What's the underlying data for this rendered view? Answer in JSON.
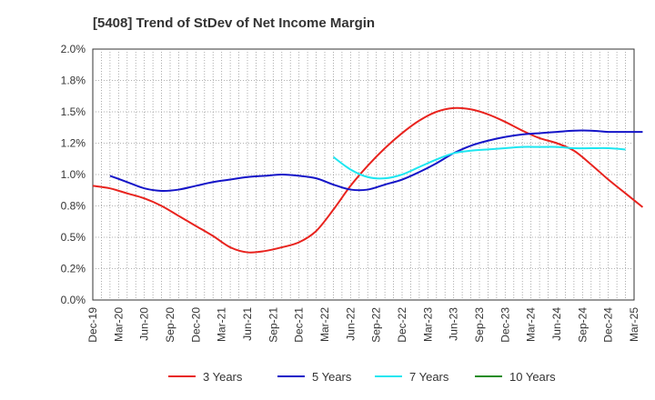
{
  "chart_data": {
    "type": "line",
    "title": "[5408]  Trend of StDev of Net Income Margin",
    "xlabel": "",
    "ylabel": "",
    "ylim": [
      0,
      2.0
    ],
    "yticks": [
      "0.0%",
      "0.2%",
      "0.5%",
      "0.8%",
      "1.0%",
      "1.2%",
      "1.5%",
      "1.8%",
      "2.0%"
    ],
    "ytick_values": [
      0,
      0.25,
      0.5,
      0.75,
      1.0,
      1.25,
      1.5,
      1.75,
      2.0
    ],
    "xticks": [
      "Dec-19",
      "Mar-20",
      "Jun-20",
      "Sep-20",
      "Dec-20",
      "Mar-21",
      "Jun-21",
      "Sep-21",
      "Dec-21",
      "Mar-22",
      "Jun-22",
      "Sep-22",
      "Dec-22",
      "Mar-23",
      "Jun-23",
      "Sep-23",
      "Dec-23",
      "Mar-24",
      "Jun-24",
      "Sep-24",
      "Dec-24",
      "Mar-25"
    ],
    "grid": true,
    "legend_position": "bottom",
    "series": [
      {
        "name": "3 Years",
        "color": "#e8231e",
        "start_index": 0,
        "values": [
          0.91,
          0.89,
          0.85,
          0.81,
          0.75,
          0.67,
          0.59,
          0.51,
          0.42,
          0.38,
          0.39,
          0.42,
          0.46,
          0.55,
          0.72,
          0.91,
          1.07,
          1.21,
          1.33,
          1.43,
          1.5,
          1.53,
          1.52,
          1.48,
          1.42,
          1.35,
          1.29,
          1.25,
          1.19,
          1.08,
          0.96,
          0.85,
          0.74
        ]
      },
      {
        "name": "5 Years",
        "color": "#1414c8",
        "start_index": 1,
        "values": [
          0.99,
          0.94,
          0.89,
          0.87,
          0.88,
          0.91,
          0.94,
          0.96,
          0.98,
          0.99,
          1.0,
          0.99,
          0.97,
          0.92,
          0.88,
          0.88,
          0.92,
          0.96,
          1.02,
          1.09,
          1.17,
          1.23,
          1.27,
          1.3,
          1.32,
          1.33,
          1.34,
          1.35,
          1.35,
          1.34,
          1.34,
          1.34
        ]
      },
      {
        "name": "7 Years",
        "color": "#1ee6f0",
        "start_index": 14,
        "values": [
          1.14,
          1.04,
          0.98,
          0.97,
          1.0,
          1.06,
          1.12,
          1.17,
          1.19,
          1.2,
          1.21,
          1.22,
          1.22,
          1.22,
          1.21,
          1.21,
          1.21,
          1.2
        ]
      },
      {
        "name": "10 Years",
        "color": "#1e8c1e",
        "start_index": 0,
        "values": []
      }
    ]
  }
}
